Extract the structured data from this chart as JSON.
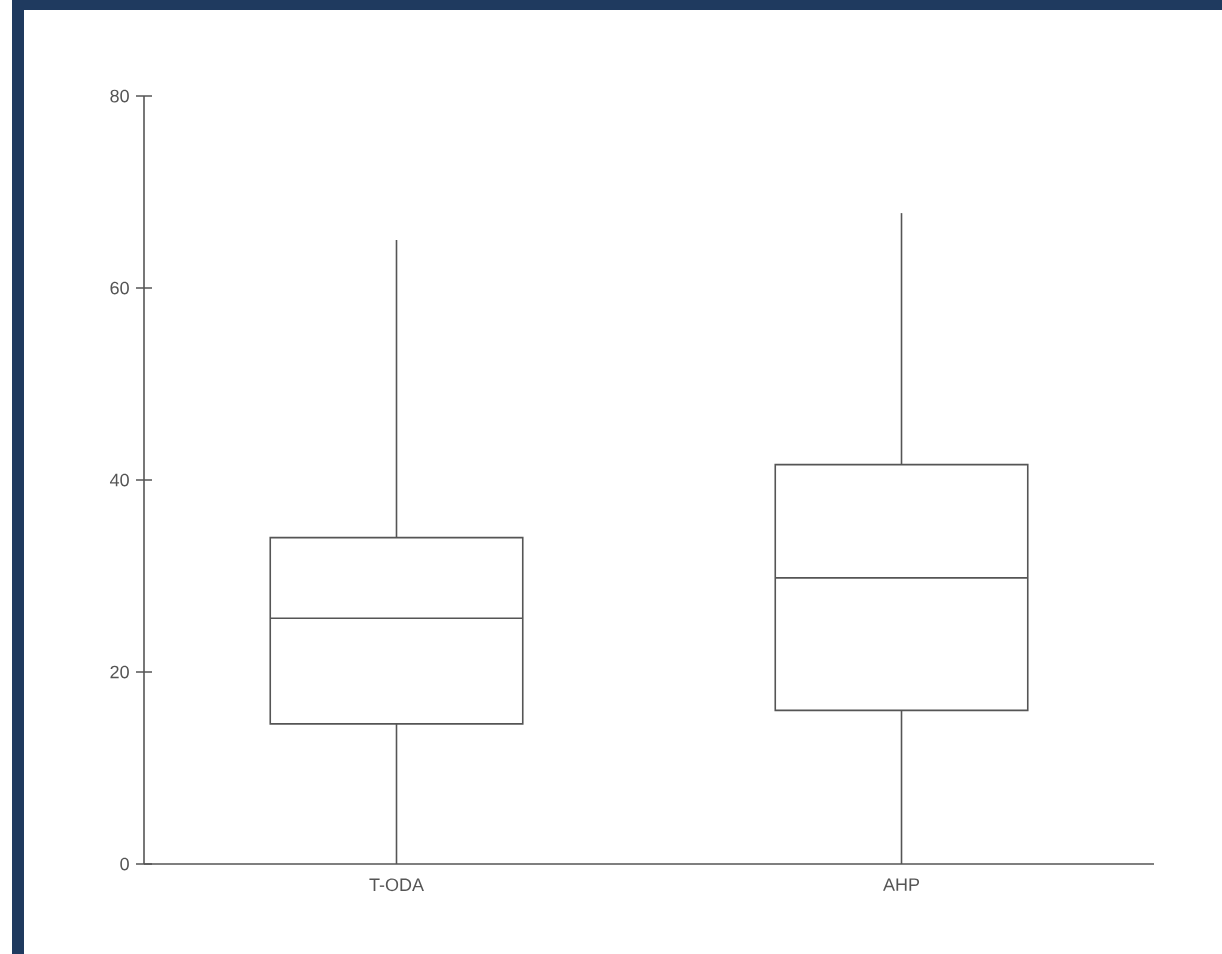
{
  "chart_data": {
    "type": "box",
    "categories": [
      "T-ODA",
      "AHP"
    ],
    "color": "#555555",
    "boxes": [
      {
        "low": 0,
        "q1": 14.6,
        "median": 25.6,
        "q3": 34,
        "high": 65
      },
      {
        "low": 0,
        "q1": 16,
        "median": 29.8,
        "q3": 41.6,
        "high": 67.8
      }
    ],
    "ylim": [
      0,
      80
    ],
    "yticks": [
      0,
      20,
      40,
      60,
      80
    ]
  }
}
